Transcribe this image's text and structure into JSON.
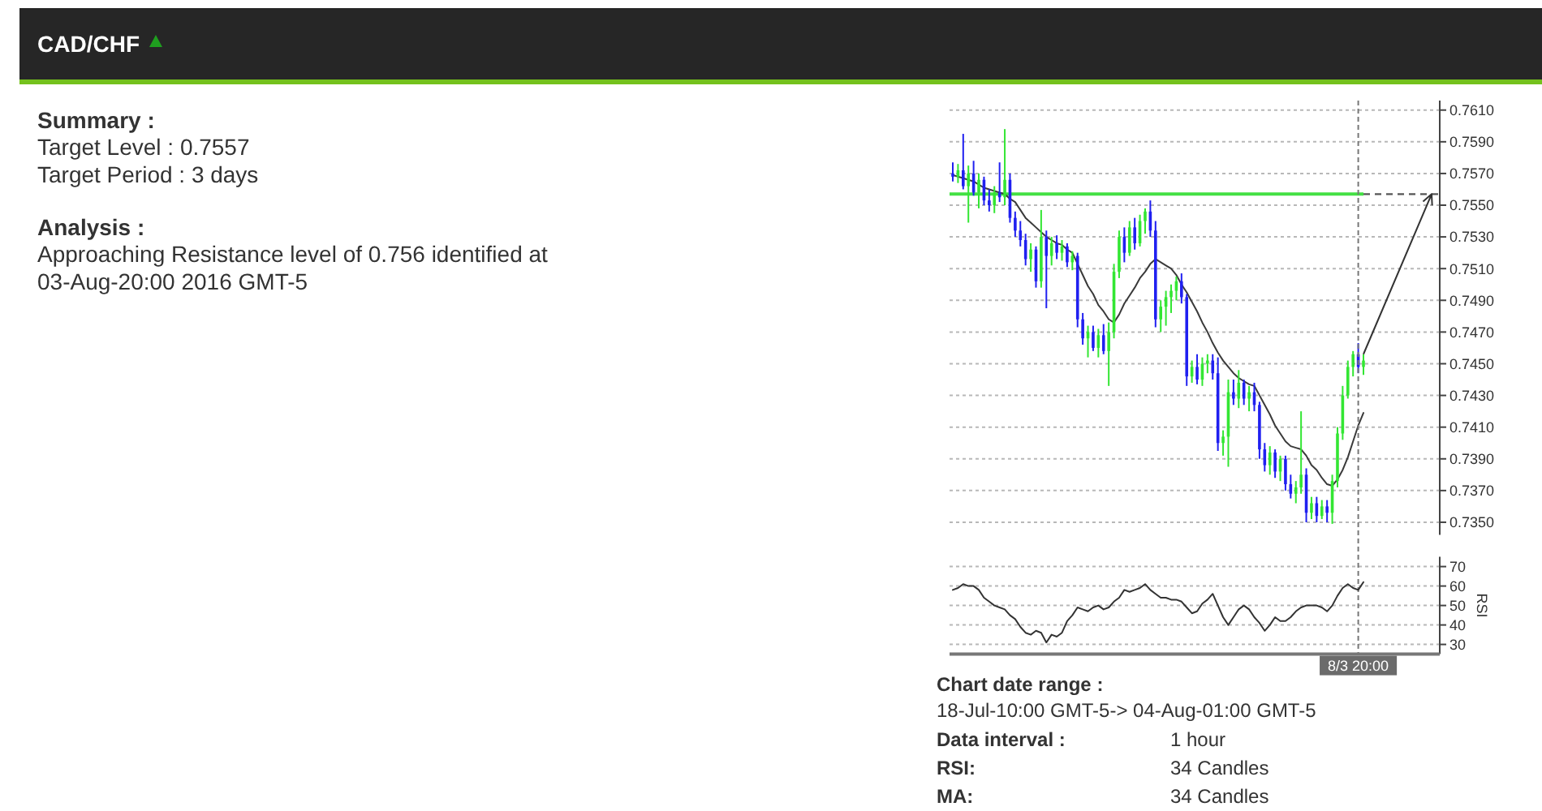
{
  "chart_data": [
    {
      "type": "other",
      "title": "CAD/CHF"
    },
    {
      "type": "other",
      "title": "Summary :",
      "annotations": [
        "Target Level : 0.7557",
        "Target Period : 3 days"
      ]
    },
    {
      "type": "other",
      "title": "Analysis :",
      "annotations": [
        "Approaching Resistance level of 0.756 identified at 03-Aug-20:00 2016 GMT-5"
      ]
    },
    {
      "type": "candlestick",
      "categories": [
        null,
        null,
        null,
        null,
        null,
        null,
        null,
        null,
        null,
        null,
        null,
        null,
        null,
        null,
        null,
        null,
        null,
        null,
        null,
        null,
        null,
        null,
        null,
        null,
        null,
        null,
        null,
        null,
        null,
        null,
        null,
        null,
        null,
        null,
        null,
        null,
        null,
        null,
        null,
        null,
        null,
        null,
        null,
        null,
        null,
        null,
        null,
        null,
        null,
        null,
        null,
        null,
        null,
        null,
        null,
        null,
        null,
        null,
        null,
        null,
        null,
        null,
        null,
        null,
        null,
        null,
        null,
        null,
        null,
        null,
        null,
        null,
        null,
        null,
        null,
        null,
        null,
        null,
        null,
        null
      ],
      "ohlc": [
        [
          0.757,
          0.7577,
          0.7565,
          0.7568
        ],
        [
          0.7568,
          0.7576,
          0.7564,
          0.7572
        ],
        [
          0.7572,
          0.7595,
          0.756,
          0.7562
        ],
        [
          0.7562,
          0.7575,
          0.7539,
          0.757
        ],
        [
          0.757,
          0.7578,
          0.7556,
          0.7558
        ],
        [
          0.7558,
          0.757,
          0.7548,
          0.7566
        ],
        [
          0.7566,
          0.7568,
          0.755,
          0.7553
        ],
        [
          0.7553,
          0.756,
          0.7546,
          0.755
        ],
        [
          0.755,
          0.7562,
          0.7545,
          0.7558
        ],
        [
          0.7558,
          0.7577,
          0.7552,
          0.7555
        ],
        [
          0.7555,
          0.7598,
          0.755,
          0.7566
        ],
        [
          0.7566,
          0.757,
          0.7539,
          0.7542
        ],
        [
          0.7542,
          0.7546,
          0.753,
          0.7534
        ],
        [
          0.7534,
          0.754,
          0.7524,
          0.7528
        ],
        [
          0.7528,
          0.7532,
          0.7512,
          0.7516
        ],
        [
          0.7516,
          0.7526,
          0.7508,
          0.7522
        ],
        [
          0.7522,
          0.7524,
          0.7498,
          0.7502
        ],
        [
          0.7502,
          0.7547,
          0.7498,
          0.753
        ],
        [
          0.753,
          0.7534,
          0.7485,
          0.7518
        ],
        [
          0.7518,
          0.753,
          0.7512,
          0.7526
        ],
        [
          0.7526,
          0.7531,
          0.7516,
          0.752
        ],
        [
          0.752,
          0.7528,
          0.7515,
          0.7524
        ],
        [
          0.7524,
          0.7526,
          0.7511,
          0.7514
        ],
        [
          0.7514,
          0.7521,
          0.7509,
          0.7518
        ],
        [
          0.7518,
          0.752,
          0.7473,
          0.7478
        ],
        [
          0.7478,
          0.7482,
          0.7462,
          0.7466
        ],
        [
          0.7466,
          0.7474,
          0.7454,
          0.747
        ],
        [
          0.747,
          0.7474,
          0.7458,
          0.746
        ],
        [
          0.746,
          0.7472,
          0.7454,
          0.7468
        ],
        [
          0.7468,
          0.7475,
          0.7456,
          0.7458
        ],
        [
          0.7458,
          0.7476,
          0.7436,
          0.747
        ],
        [
          0.747,
          0.7513,
          0.7466,
          0.7508
        ],
        [
          0.7508,
          0.7534,
          0.7504,
          0.753
        ],
        [
          0.753,
          0.7536,
          0.7514,
          0.752
        ],
        [
          0.752,
          0.754,
          0.7518,
          0.7536
        ],
        [
          0.7536,
          0.7542,
          0.7522,
          0.7526
        ],
        [
          0.7526,
          0.7544,
          0.7524,
          0.754
        ],
        [
          0.754,
          0.7548,
          0.7532,
          0.7546
        ],
        [
          0.7546,
          0.7553,
          0.753,
          0.7534
        ],
        [
          0.7534,
          0.754,
          0.7473,
          0.7478
        ],
        [
          0.7478,
          0.749,
          0.747,
          0.7486
        ],
        [
          0.7486,
          0.7496,
          0.7474,
          0.7492
        ],
        [
          0.7492,
          0.75,
          0.7482,
          0.7496
        ],
        [
          0.7496,
          0.7505,
          0.749,
          0.7502
        ],
        [
          0.7502,
          0.7507,
          0.7488,
          0.7492
        ],
        [
          0.7492,
          0.7494,
          0.7436,
          0.7442
        ],
        [
          0.7442,
          0.7452,
          0.7438,
          0.7448
        ],
        [
          0.7448,
          0.7456,
          0.7437,
          0.744
        ],
        [
          0.744,
          0.7454,
          0.7436,
          0.745
        ],
        [
          0.745,
          0.7456,
          0.7444,
          0.7452
        ],
        [
          0.7452,
          0.7456,
          0.744,
          0.7444
        ],
        [
          0.7444,
          0.7454,
          0.7395,
          0.74
        ],
        [
          0.74,
          0.7408,
          0.7392,
          0.7404
        ],
        [
          0.7404,
          0.744,
          0.7385,
          0.7432
        ],
        [
          0.7432,
          0.744,
          0.7424,
          0.7428
        ],
        [
          0.7428,
          0.7446,
          0.7422,
          0.7438
        ],
        [
          0.7438,
          0.744,
          0.7424,
          0.7428
        ],
        [
          0.7428,
          0.7436,
          0.742,
          0.7432
        ],
        [
          0.7432,
          0.7438,
          0.742,
          0.7424
        ],
        [
          0.7424,
          0.7426,
          0.739,
          0.7396
        ],
        [
          0.7396,
          0.74,
          0.7382,
          0.7386
        ],
        [
          0.7386,
          0.7398,
          0.738,
          0.7394
        ],
        [
          0.7394,
          0.7396,
          0.7378,
          0.7382
        ],
        [
          0.7382,
          0.7392,
          0.7376,
          0.739
        ],
        [
          0.739,
          0.7392,
          0.737,
          0.7374
        ],
        [
          0.7374,
          0.738,
          0.7365,
          0.7368
        ],
        [
          0.7368,
          0.7376,
          0.7362,
          0.7372
        ],
        [
          0.7372,
          0.742,
          0.7368,
          0.738
        ],
        [
          0.738,
          0.7384,
          0.735,
          0.7356
        ],
        [
          0.7356,
          0.7366,
          0.7352,
          0.7362
        ],
        [
          0.7362,
          0.7366,
          0.735,
          0.7354
        ],
        [
          0.7354,
          0.7364,
          0.7352,
          0.736
        ],
        [
          0.736,
          0.7364,
          0.735,
          0.7356
        ],
        [
          0.7356,
          0.738,
          0.7349,
          0.7376
        ],
        [
          0.7376,
          0.741,
          0.7372,
          0.7406
        ],
        [
          0.7406,
          0.7436,
          0.7402,
          0.743
        ],
        [
          0.743,
          0.7452,
          0.7428,
          0.7448
        ],
        [
          0.7448,
          0.7458,
          0.7442,
          0.7456
        ],
        [
          0.7456,
          0.7463,
          0.7444,
          0.7448
        ],
        [
          0.7448,
          0.7456,
          0.7443,
          0.7452
        ]
      ],
      "colors": [
        "#2020f0",
        "#33e633",
        "#2020f0",
        "#33e633",
        "#2020f0",
        "#33e633",
        "#2020f0",
        "#2020f0",
        "#33e633",
        "#2020f0",
        "#33e633",
        "#2020f0",
        "#2020f0",
        "#2020f0",
        "#2020f0",
        "#33e633",
        "#2020f0",
        "#33e633",
        "#2020f0",
        "#33e633",
        "#2020f0",
        "#33e633",
        "#2020f0",
        "#33e633",
        "#2020f0",
        "#2020f0",
        "#33e633",
        "#2020f0",
        "#33e633",
        "#2020f0",
        "#33e633",
        "#33e633",
        "#33e633",
        "#2020f0",
        "#33e633",
        "#2020f0",
        "#33e633",
        "#33e633",
        "#2020f0",
        "#2020f0",
        "#33e633",
        "#33e633",
        "#33e633",
        "#33e633",
        "#2020f0",
        "#2020f0",
        "#33e633",
        "#2020f0",
        "#33e633",
        "#33e633",
        "#2020f0",
        "#2020f0",
        "#33e633",
        "#33e633",
        "#2020f0",
        "#33e633",
        "#2020f0",
        "#33e633",
        "#2020f0",
        "#2020f0",
        "#2020f0",
        "#33e633",
        "#2020f0",
        "#33e633",
        "#2020f0",
        "#2020f0",
        "#33e633",
        "#33e633",
        "#2020f0",
        "#33e633",
        "#2020f0",
        "#33e633",
        "#2020f0",
        "#33e633",
        "#33e633",
        "#33e633",
        "#33e633",
        "#33e633",
        "#2020f0",
        "#33e633"
      ],
      "series": [
        {
          "type": "line",
          "color": "#3a3a3a",
          "values": [
            0.7569,
            0.7568,
            0.7567,
            0.7566,
            0.7565,
            0.7563,
            0.7561,
            0.756,
            0.7559,
            0.7558,
            0.7557,
            0.7554,
            0.7552,
            0.7547,
            0.7542,
            0.7539,
            0.7536,
            0.7533,
            0.753,
            0.7528,
            0.7526,
            0.7525,
            0.7522,
            0.752,
            0.7513,
            0.7506,
            0.7499,
            0.7494,
            0.7487,
            0.7483,
            0.7478,
            0.7476,
            0.7481,
            0.7488,
            0.7493,
            0.7498,
            0.7504,
            0.7508,
            0.7513,
            0.7516,
            0.7514,
            0.7512,
            0.751,
            0.7506,
            0.75,
            0.7495,
            0.7489,
            0.7483,
            0.7476,
            0.747,
            0.7463,
            0.7457,
            0.7452,
            0.7448,
            0.7444,
            0.7441,
            0.7439,
            0.7437,
            0.7436,
            0.743,
            0.7424,
            0.7418,
            0.7411,
            0.7406,
            0.7401,
            0.7398,
            0.7397,
            0.7396,
            0.7392,
            0.7386,
            0.7383,
            0.7378,
            0.7374,
            0.7373,
            0.7377,
            0.7383,
            0.7391,
            0.7401,
            0.7411,
            0.7419
          ]
        }
      ],
      "ylim": [
        0.7342,
        0.7616
      ],
      "yticks": [
        {
          "value": 0.735,
          "label": "0.7350"
        },
        {
          "value": 0.737,
          "label": "0.7370"
        },
        {
          "value": 0.739,
          "label": "0.7390"
        },
        {
          "value": 0.741,
          "label": "0.7410"
        },
        {
          "value": 0.743,
          "label": "0.7430"
        },
        {
          "value": 0.745,
          "label": "0.7450"
        },
        {
          "value": 0.747,
          "label": "0.7470"
        },
        {
          "value": 0.749,
          "label": "0.7490"
        },
        {
          "value": 0.751,
          "label": "0.7510"
        },
        {
          "value": 0.753,
          "label": "0.7530"
        },
        {
          "value": 0.755,
          "label": "0.7550"
        },
        {
          "value": 0.757,
          "label": "0.7570"
        },
        {
          "value": 0.759,
          "label": "0.7590"
        },
        {
          "value": 0.761,
          "label": "0.7610"
        }
      ],
      "grid": "y",
      "tick_labels": "y",
      "ref_lines": [
        {
          "axis": "y",
          "value": 0.7557,
          "color": "#44e044"
        }
      ]
    },
    {
      "type": "line",
      "categories": [
        null,
        null,
        null,
        null,
        null,
        null,
        null,
        null,
        null,
        null,
        null,
        null,
        null,
        null,
        null,
        null,
        null,
        null,
        null,
        null,
        null,
        null,
        null,
        null,
        null,
        null,
        null,
        null,
        null,
        null,
        null,
        null,
        null,
        null,
        null,
        null,
        null,
        null,
        null,
        null,
        null,
        null,
        null,
        null,
        null,
        null,
        null,
        null,
        null,
        null,
        null,
        null,
        null,
        null,
        null,
        null,
        null,
        null,
        null,
        null,
        null,
        null,
        null,
        null,
        null,
        null,
        null,
        null,
        null,
        null,
        null,
        null,
        null,
        null,
        null,
        null,
        null,
        null,
        "8/3 20:00",
        null
      ],
      "values": [
        58,
        59,
        61,
        60,
        60,
        58,
        54,
        52,
        50,
        49,
        48,
        45,
        43,
        39,
        36,
        35,
        37,
        36,
        31,
        35,
        34,
        36,
        42,
        45,
        49,
        48,
        47,
        49,
        50,
        48,
        49,
        52,
        54,
        58,
        57,
        58,
        59,
        61,
        58,
        56,
        54,
        54,
        53,
        53,
        52,
        49,
        46,
        47,
        51,
        53,
        56,
        50,
        44,
        40,
        44,
        48,
        50,
        48,
        44,
        41,
        37,
        40,
        44,
        42,
        42,
        44,
        47,
        49,
        50,
        50,
        50,
        49,
        47,
        50,
        55,
        59,
        61,
        59,
        58,
        62
      ],
      "color": "#333333",
      "ylabel": "RSI",
      "ylim": [
        25,
        75
      ],
      "yticks": [
        30,
        40,
        50,
        60,
        70
      ],
      "grid": "y",
      "ref_lines": [
        {
          "axis": "x",
          "value": "8/3 20:00",
          "color": "#777777",
          "line_style": "dashed"
        }
      ]
    },
    {
      "type": "other",
      "title": "Chart date range :",
      "subtitle": "18-Jul-10:00 GMT-5-> 04-Aug-01:00 GMT-5",
      "annotations": [
        "Data interval :",
        "1 hour",
        "RSI:",
        "34 Candles",
        "MA:",
        "34 Candles"
      ]
    }
  ]
}
